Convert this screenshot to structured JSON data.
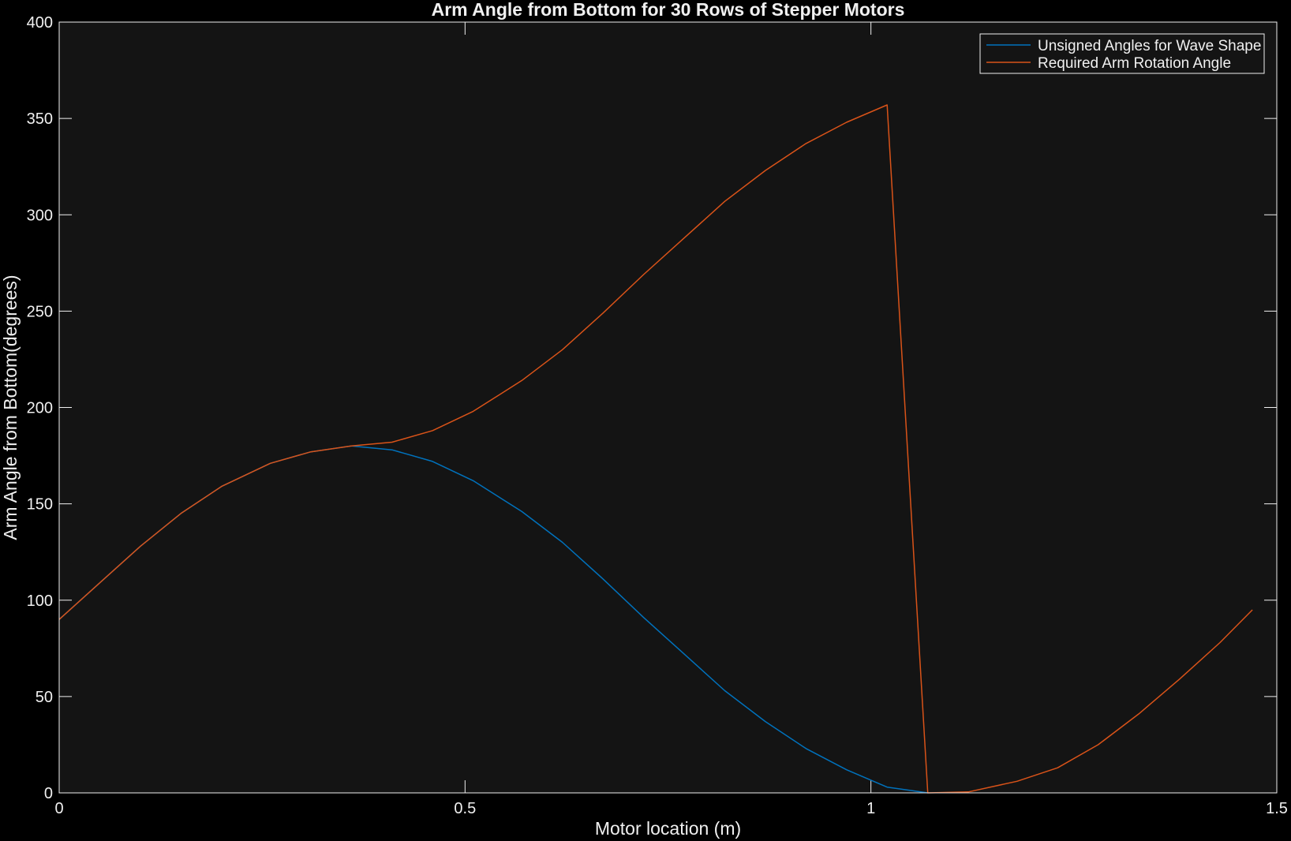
{
  "chart_data": {
    "type": "line",
    "title": "Arm Angle from Bottom for 30 Rows of Stepper Motors",
    "xlabel": "Motor location (m)",
    "ylabel": "Arm Angle from Bottom(degrees)",
    "xlim": [
      0,
      1.5
    ],
    "ylim": [
      0,
      400
    ],
    "xticks": [
      0,
      0.5,
      1,
      1.5
    ],
    "xtick_labels": [
      "0",
      "0.5",
      "1",
      "1.5"
    ],
    "yticks": [
      0,
      50,
      100,
      150,
      200,
      250,
      300,
      350,
      400
    ],
    "ytick_labels": [
      "0",
      "50",
      "100",
      "150",
      "200",
      "250",
      "300",
      "350",
      "400"
    ],
    "grid": false,
    "legend_position": "top-right",
    "background": "#141414",
    "figure_background": "#000000",
    "axes_color": "#f0f0f0",
    "series": [
      {
        "name": "Unsigned Angles for Wave Shape",
        "color": "#0072bd",
        "x": [
          0,
          0.05,
          0.1,
          0.15,
          0.2,
          0.26,
          0.31,
          0.36,
          0.41,
          0.46,
          0.51,
          0.57,
          0.62,
          0.67,
          0.72,
          0.77,
          0.82,
          0.87,
          0.92,
          0.97,
          1.02,
          1.07
        ],
        "y": [
          90,
          109,
          128,
          145,
          159,
          171,
          177,
          180,
          178,
          172,
          162,
          146,
          130,
          111,
          91,
          72,
          53,
          37,
          23,
          12,
          3,
          0
        ]
      },
      {
        "name": "Required Arm Rotation Angle",
        "color": "#d95319",
        "x": [
          0,
          0.05,
          0.1,
          0.15,
          0.2,
          0.26,
          0.31,
          0.36,
          0.41,
          0.46,
          0.51,
          0.57,
          0.62,
          0.67,
          0.72,
          0.77,
          0.82,
          0.87,
          0.92,
          0.97,
          1.02,
          1.07,
          1.12,
          1.18,
          1.23,
          1.28,
          1.33,
          1.38,
          1.43,
          1.47
        ],
        "y": [
          90,
          109,
          128,
          145,
          159,
          171,
          177,
          180,
          182,
          188,
          198,
          214,
          230,
          249,
          269,
          288,
          307,
          323,
          337,
          348,
          357,
          0,
          0.5,
          6,
          13,
          25,
          41,
          59,
          78,
          95
        ]
      }
    ]
  }
}
